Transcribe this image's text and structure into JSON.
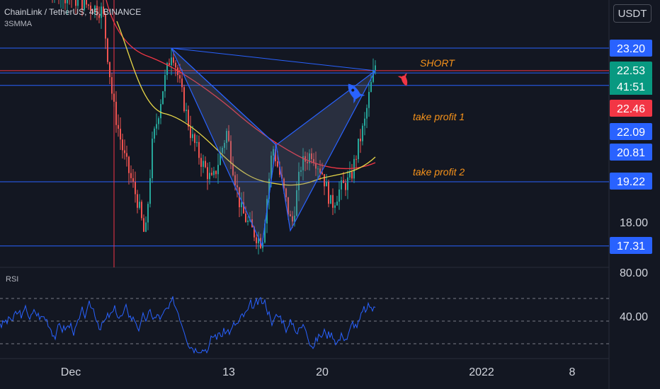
{
  "header": {
    "title": "ChainLink / TetherUS, 45, BINANCE",
    "indicator": "3SMMA",
    "currency_button": "USDT"
  },
  "annotations": {
    "short": "SHORT",
    "tp1": "take profit 1",
    "tp2": "take profit 2"
  },
  "rsi_label": "RSI",
  "price_labels": [
    {
      "value": 23.2,
      "text": "23.20",
      "color": "#2962ff"
    },
    {
      "value": 22.53,
      "text": "22.53",
      "color": "#089981"
    },
    {
      "value": 22.46,
      "text": "22.46",
      "color": "#f23645"
    },
    {
      "value": 22.09,
      "text": "22.09",
      "color": "#2962ff"
    },
    {
      "value": 20.81,
      "text": "20.81",
      "color": "#2962ff"
    },
    {
      "value": 19.22,
      "text": "19.22",
      "color": "#2962ff"
    },
    {
      "value": 17.31,
      "text": "17.31",
      "color": "#2962ff"
    }
  ],
  "countdown": "41:51",
  "chart_data": {
    "type": "candlestick",
    "title": "ChainLink / TetherUS, 45, BINANCE",
    "x_ticks": [
      "Dec",
      "13",
      "20",
      "2022",
      "8"
    ],
    "y_ticks": [
      "18.00"
    ],
    "horizontal_levels": [
      23.2,
      22.53,
      22.46,
      22.09,
      19.22,
      17.31
    ],
    "indicators": [
      "3SMMA"
    ],
    "rsi": {
      "y_ticks": [
        "80.00",
        "40.00"
      ],
      "ylim": [
        20,
        90
      ]
    },
    "colors": {
      "up": "#26a69a",
      "down": "#ef5350",
      "line": "#2962ff",
      "ma1": "#f23645",
      "ma2": "#e6d648"
    }
  }
}
